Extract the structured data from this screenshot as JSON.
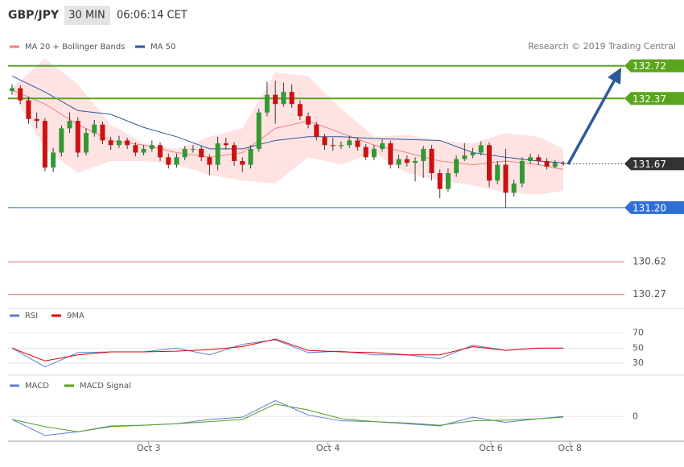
{
  "chart_data": {
    "type": "candlestick",
    "symbol": "GBP/JPY",
    "interval": "30 MIN",
    "time": "06:06:14 CET",
    "credit": "Research © 2019 Trading Central",
    "up_color": "#339933",
    "down_color": "#cc1111",
    "ylim": [
      130.19,
      132.89
    ],
    "xlim": [
      0,
      67
    ],
    "xticks": [
      {
        "value": 16.6,
        "label": "Oct 3"
      },
      {
        "value": 38.4,
        "label": "Oct 4"
      },
      {
        "value": 58.2,
        "label": "Oct 6"
      },
      {
        "value": 67.8,
        "label": "Oct 8"
      }
    ],
    "ohlc": [
      [
        132.45,
        132.52,
        132.41,
        132.48
      ],
      [
        132.48,
        132.51,
        132.31,
        132.35
      ],
      [
        132.35,
        132.39,
        132.1,
        132.15
      ],
      [
        132.15,
        132.22,
        132.05,
        132.13
      ],
      [
        132.13,
        132.16,
        131.59,
        131.63
      ],
      [
        131.63,
        131.84,
        131.58,
        131.79
      ],
      [
        131.79,
        132.08,
        131.75,
        132.05
      ],
      [
        132.05,
        132.22,
        132.0,
        132.13
      ],
      [
        132.13,
        132.17,
        131.74,
        131.79
      ],
      [
        131.79,
        132.05,
        131.76,
        132.0
      ],
      [
        132.0,
        132.14,
        131.96,
        132.09
      ],
      [
        132.09,
        132.12,
        131.88,
        131.92
      ],
      [
        131.92,
        131.96,
        131.82,
        131.87
      ],
      [
        131.87,
        131.97,
        131.84,
        131.92
      ],
      [
        131.92,
        131.95,
        131.83,
        131.87
      ],
      [
        131.87,
        131.9,
        131.75,
        131.79
      ],
      [
        131.79,
        131.87,
        131.76,
        131.83
      ],
      [
        131.83,
        131.92,
        131.8,
        131.87
      ],
      [
        131.87,
        131.9,
        131.7,
        131.74
      ],
      [
        131.74,
        131.78,
        131.62,
        131.66
      ],
      [
        131.66,
        131.78,
        131.63,
        131.74
      ],
      [
        131.74,
        131.86,
        131.71,
        131.83
      ],
      [
        131.83,
        131.87,
        131.79,
        131.83
      ],
      [
        131.83,
        131.86,
        131.7,
        131.74
      ],
      [
        131.74,
        131.77,
        131.55,
        131.66
      ],
      [
        131.66,
        131.96,
        131.6,
        131.89
      ],
      [
        131.89,
        131.95,
        131.82,
        131.87
      ],
      [
        131.87,
        131.9,
        131.65,
        131.7
      ],
      [
        131.7,
        131.74,
        131.58,
        131.66
      ],
      [
        131.66,
        131.87,
        131.62,
        131.83
      ],
      [
        131.83,
        132.26,
        131.8,
        132.22
      ],
      [
        132.22,
        132.55,
        132.18,
        132.41
      ],
      [
        132.41,
        132.56,
        132.1,
        132.31
      ],
      [
        132.31,
        132.54,
        132.28,
        132.44
      ],
      [
        132.44,
        132.52,
        132.27,
        132.31
      ],
      [
        132.31,
        132.35,
        132.14,
        132.18
      ],
      [
        132.18,
        132.22,
        132.05,
        132.09
      ],
      [
        132.09,
        132.12,
        131.92,
        131.96
      ],
      [
        131.96,
        131.99,
        131.82,
        131.87
      ],
      [
        131.87,
        131.95,
        131.81,
        131.86
      ],
      [
        131.86,
        131.91,
        131.83,
        131.87
      ],
      [
        131.87,
        131.97,
        131.84,
        131.92
      ],
      [
        131.92,
        131.95,
        131.81,
        131.85
      ],
      [
        131.85,
        131.88,
        131.71,
        131.74
      ],
      [
        131.74,
        131.87,
        131.71,
        131.83
      ],
      [
        131.83,
        131.93,
        131.8,
        131.89
      ],
      [
        131.89,
        131.92,
        131.62,
        131.66
      ],
      [
        131.66,
        131.77,
        131.62,
        131.72
      ],
      [
        131.72,
        131.76,
        131.64,
        131.68
      ],
      [
        131.68,
        131.74,
        131.48,
        131.7
      ],
      [
        131.7,
        131.86,
        131.52,
        131.83
      ],
      [
        131.83,
        131.87,
        131.49,
        131.57
      ],
      [
        131.57,
        131.61,
        131.3,
        131.4
      ],
      [
        131.4,
        131.62,
        131.37,
        131.57
      ],
      [
        131.57,
        131.76,
        131.53,
        131.72
      ],
      [
        131.72,
        131.89,
        131.7,
        131.76
      ],
      [
        131.76,
        131.84,
        131.73,
        131.79
      ],
      [
        131.79,
        131.91,
        131.76,
        131.87
      ],
      [
        131.87,
        131.9,
        131.42,
        131.49
      ],
      [
        131.49,
        131.7,
        131.45,
        131.66
      ],
      [
        131.66,
        131.83,
        131.2,
        131.36
      ],
      [
        131.36,
        131.5,
        131.32,
        131.46
      ],
      [
        131.46,
        131.74,
        131.42,
        131.7
      ],
      [
        131.7,
        131.78,
        131.67,
        131.74
      ],
      [
        131.74,
        131.77,
        131.66,
        131.7
      ],
      [
        131.7,
        131.73,
        131.61,
        131.64
      ],
      [
        131.64,
        131.71,
        131.62,
        131.68
      ],
      [
        131.68,
        131.7,
        131.65,
        131.67
      ]
    ],
    "x": [
      0,
      4,
      8,
      12,
      16,
      20,
      24,
      28,
      32,
      36,
      40,
      44,
      48,
      52,
      56,
      60,
      64,
      67
    ],
    "bands": {
      "name": "MA 20 + Bollinger Bands",
      "color": "#f08080",
      "fill": "#ffe3e3",
      "upper": [
        132.48,
        132.8,
        132.52,
        132.09,
        131.89,
        131.83,
        131.96,
        132.05,
        132.65,
        132.61,
        132.26,
        131.96,
        131.98,
        131.92,
        131.89,
        132.0,
        131.96,
        131.83
      ],
      "lower": [
        132.44,
        131.83,
        131.57,
        131.7,
        131.7,
        131.66,
        131.55,
        131.49,
        131.46,
        131.74,
        131.66,
        131.79,
        131.57,
        131.49,
        131.44,
        131.36,
        131.34,
        131.38
      ],
      "values": [
        132.46,
        132.31,
        132.09,
        131.92,
        131.87,
        131.79,
        131.74,
        131.79,
        132.05,
        132.13,
        132.0,
        131.87,
        131.79,
        131.7,
        131.66,
        131.7,
        131.66,
        131.61
      ]
    },
    "ma50": {
      "name": "MA 50",
      "color": "#2d5a9a",
      "values": [
        132.61,
        132.44,
        132.24,
        132.2,
        132.06,
        131.96,
        131.83,
        131.83,
        131.92,
        131.96,
        131.96,
        131.94,
        131.93,
        131.92,
        131.79,
        131.74,
        131.7,
        131.68
      ]
    },
    "levels": [
      {
        "value": 132.72,
        "color": "#5aa51e",
        "style": "box"
      },
      {
        "value": 132.37,
        "color": "#5aa51e",
        "style": "box"
      },
      {
        "value": 131.67,
        "color": "#333333",
        "style": "dotted"
      },
      {
        "value": {
          "value": 131.2,
          "label": "131.20"
        },
        "color": "#2f6fd6",
        "style": "box"
      },
      {
        "value": 130.62,
        "color": "#e07070",
        "style": "plain"
      },
      {
        "value": 130.27,
        "color": "#e07070",
        "style": "plain"
      }
    ],
    "rsi": {
      "ylim": [
        15,
        90
      ],
      "yticks": [
        30,
        50,
        70
      ],
      "series": [
        {
          "name": "RSI",
          "color": "#5b7fd6",
          "values": [
            50,
            25,
            44,
            45,
            45,
            50,
            41,
            55,
            61,
            44,
            46,
            41,
            41,
            36,
            54,
            47,
            50,
            50
          ]
        },
        {
          "name": "9MA",
          "color": "#dd0000",
          "values": [
            50,
            33,
            41,
            45,
            45,
            46,
            48,
            52,
            62,
            47,
            45,
            44,
            41,
            41,
            52,
            47,
            50,
            50
          ]
        }
      ]
    },
    "macd": {
      "ylim": [
        -0.17,
        0.195
      ],
      "yticks": [
        0
      ],
      "series": [
        {
          "name": "MACD",
          "color": "#5b7fd6",
          "values": [
            -0.02,
            -0.13,
            -0.105,
            -0.065,
            -0.06,
            -0.05,
            -0.02,
            -0.005,
            0.11,
            0.01,
            -0.03,
            -0.035,
            -0.05,
            -0.065,
            -0.005,
            -0.04,
            -0.015,
            0
          ]
        },
        {
          "name": "MACD Signal",
          "color": "#55a020",
          "values": [
            -0.02,
            -0.07,
            -0.105,
            -0.07,
            -0.06,
            -0.05,
            -0.035,
            -0.02,
            0.085,
            0.045,
            -0.015,
            -0.035,
            -0.045,
            -0.06,
            -0.03,
            -0.025,
            -0.015,
            -0.005
          ]
        }
      ]
    }
  }
}
